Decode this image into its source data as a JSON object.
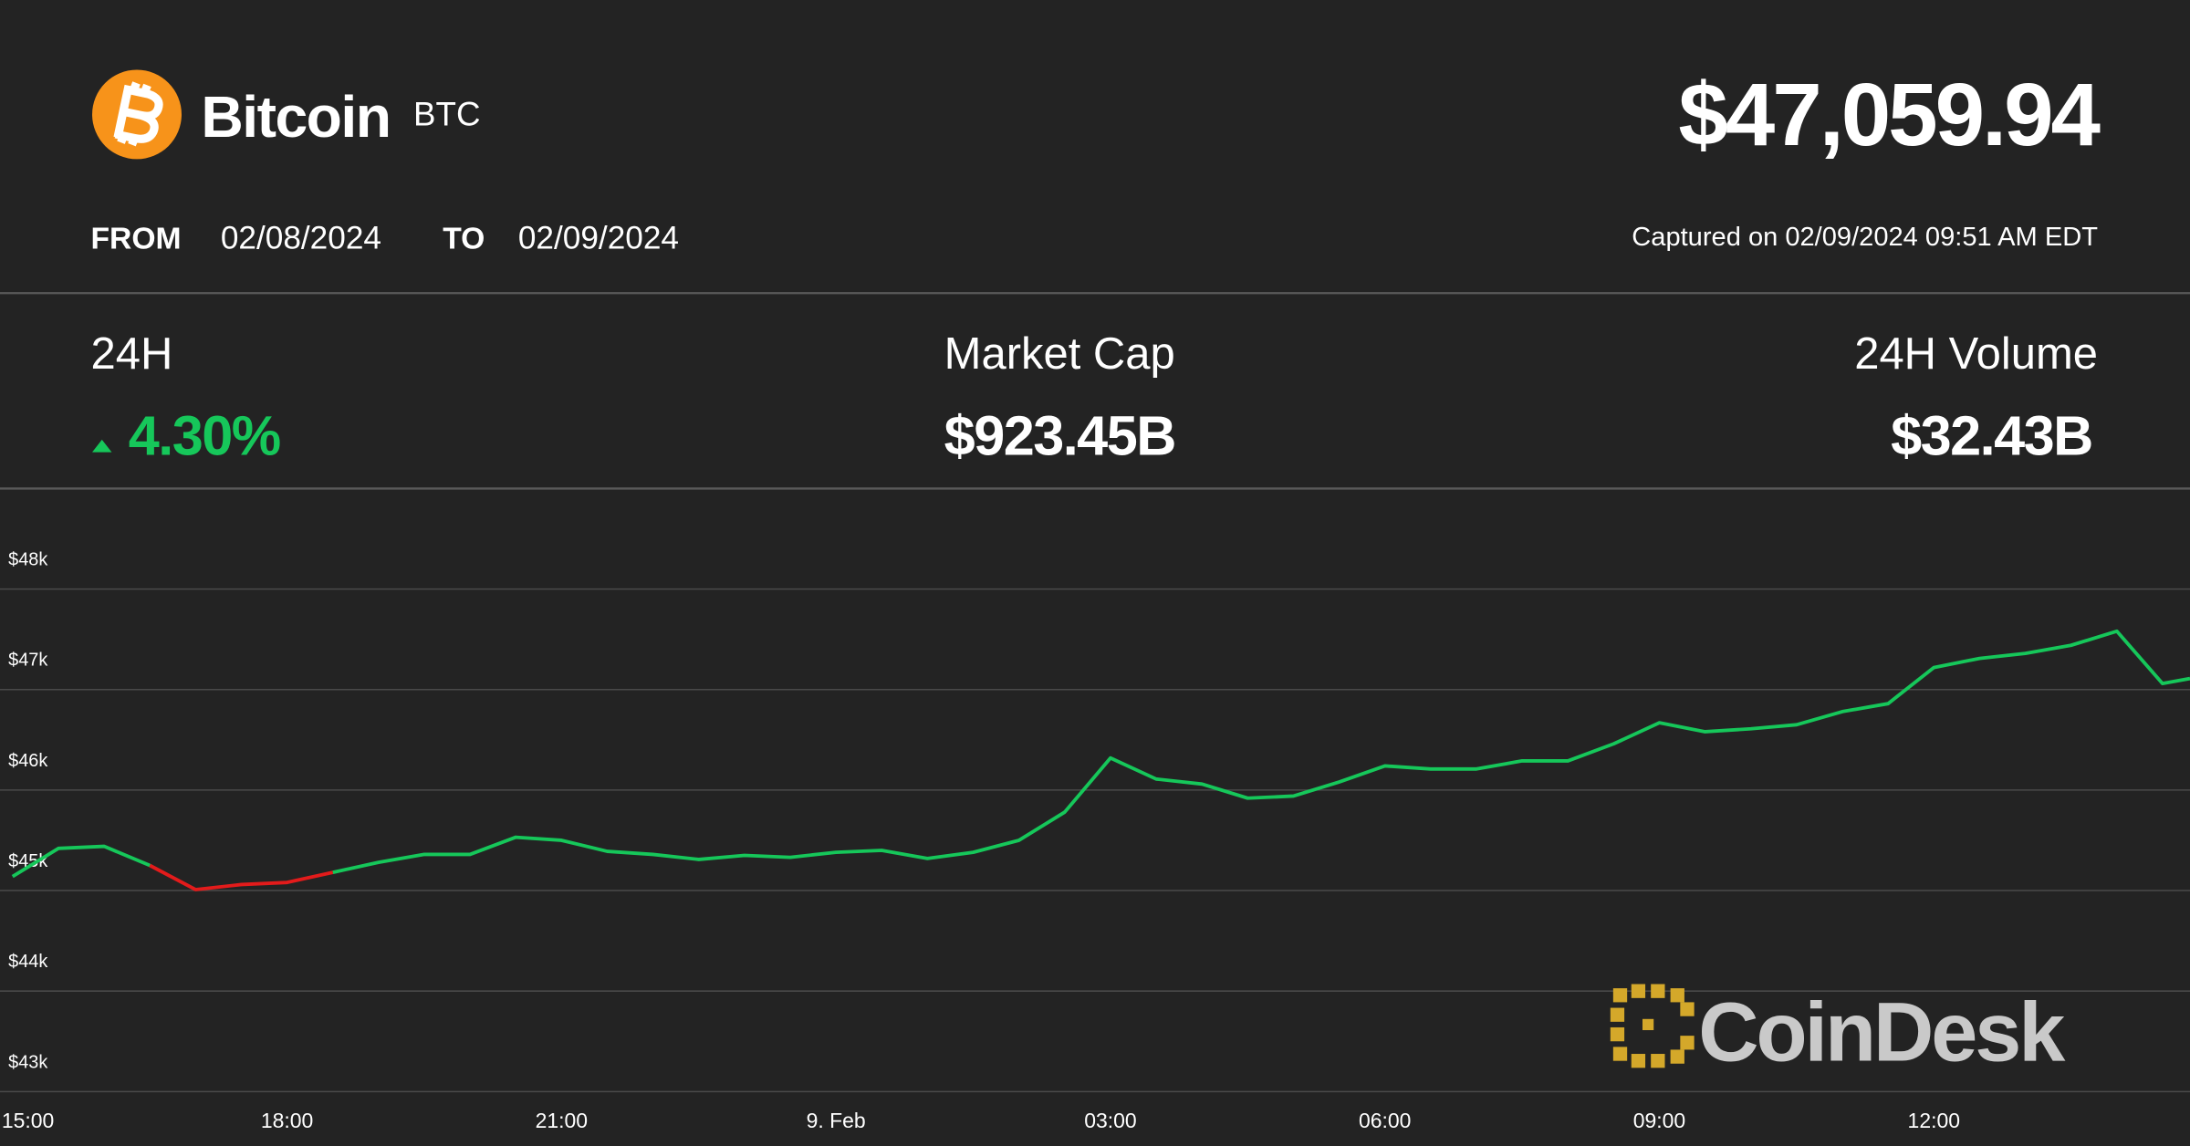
{
  "header": {
    "name": "Bitcoin",
    "symbol": "BTC",
    "price": "$47,059.94",
    "from_label": "FROM",
    "from_date": "02/08/2024",
    "to_label": "TO",
    "to_date": "02/09/2024",
    "captured": "Captured on 02/09/2024 09:51 AM EDT"
  },
  "stats": [
    {
      "label": "24H",
      "value": "4.30%"
    },
    {
      "label": "Market Cap",
      "value": "$923.45B"
    },
    {
      "label": "24H Volume",
      "value": "$32.43B"
    }
  ],
  "brand": "CoinDesk",
  "chart_data": {
    "type": "line",
    "x": [
      0,
      0.5,
      1,
      1.5,
      2,
      2.5,
      3,
      3.5,
      4,
      4.5,
      5,
      5.5,
      6,
      6.5,
      7,
      7.5,
      8,
      8.5,
      9,
      9.5,
      10,
      10.5,
      11,
      11.5,
      12,
      12.5,
      13,
      13.5,
      14,
      14.5,
      15,
      15.5,
      16,
      16.5,
      17,
      17.5,
      18,
      18.5,
      19,
      19.5,
      20,
      20.5,
      21,
      21.5,
      22,
      22.5,
      23,
      23.5,
      23.8
    ],
    "series": [
      {
        "color": "#16c75a",
        "values": [
          45140,
          45420,
          45440,
          45250,
          null,
          null,
          null,
          45180,
          45280,
          45360,
          45360,
          45530,
          45500,
          45390,
          45360,
          45310,
          45350,
          45330,
          45380,
          45400,
          45320,
          45380,
          45500,
          45780,
          46320,
          46110,
          46060,
          45920,
          45940,
          46080,
          46240,
          46210,
          46210,
          46290,
          46290,
          46460,
          46670,
          46580,
          46610,
          46650,
          46780,
          46860,
          47220,
          47310,
          47360,
          47440,
          47580,
          47060,
          47110
        ]
      },
      {
        "color": "#e31b1b",
        "values": [
          null,
          null,
          null,
          45250,
          45010,
          45060,
          45080,
          45180,
          null,
          null,
          null,
          null,
          null,
          null,
          null,
          null,
          null,
          null,
          null,
          null,
          null,
          null,
          null,
          null,
          null,
          null,
          null,
          null,
          null,
          null,
          null,
          null,
          null,
          null,
          null,
          null,
          null,
          null,
          null,
          null,
          null,
          null,
          null,
          null,
          null,
          null,
          null,
          null,
          null
        ]
      }
    ],
    "xlim": [
      0,
      23.8
    ],
    "xticks": [
      {
        "value": 0,
        "label": "15:00"
      },
      {
        "value": 3,
        "label": "18:00"
      },
      {
        "value": 6,
        "label": "21:00"
      },
      {
        "value": 9,
        "label": "9. Feb"
      },
      {
        "value": 12,
        "label": "03:00"
      },
      {
        "value": 15,
        "label": "06:00"
      },
      {
        "value": 18,
        "label": "09:00"
      },
      {
        "value": 21,
        "label": "12:00"
      }
    ],
    "ylim": [
      43000,
      49000
    ],
    "yticks": [
      {
        "value": 43000,
        "label": "$43k"
      },
      {
        "value": 44000,
        "label": "$44k"
      },
      {
        "value": 45000,
        "label": "$45k"
      },
      {
        "value": 46000,
        "label": "$46k"
      },
      {
        "value": 47000,
        "label": "$47k"
      },
      {
        "value": 48000,
        "label": "$48k"
      }
    ],
    "grid": true
  }
}
